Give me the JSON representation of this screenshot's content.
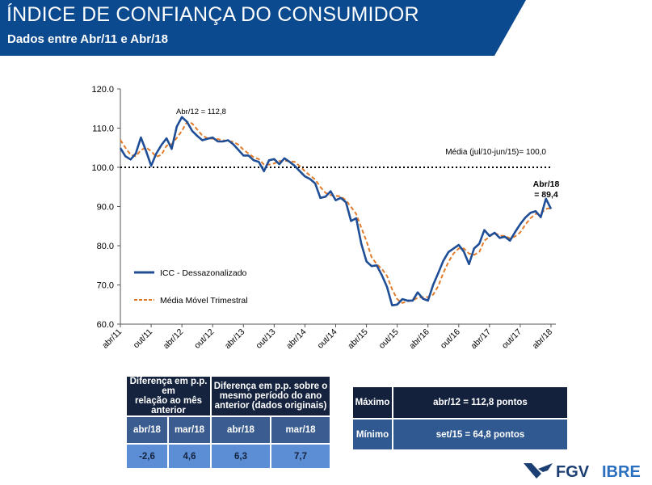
{
  "header": {
    "title": "ÍNDICE DE CONFIANÇA DO CONSUMIDOR",
    "subtitle": "Dados entre Abr/11 e Abr/18",
    "banner_color": "#0b4a8f"
  },
  "chart_data": {
    "type": "line",
    "title": "",
    "xlabel": "",
    "ylabel": "",
    "ylim": [
      60,
      120
    ],
    "yticks": [
      "60.0",
      "70.0",
      "80.0",
      "90.0",
      "100.0",
      "110.0",
      "120.0"
    ],
    "xticks": [
      "abr/11",
      "out/11",
      "abr/12",
      "out/12",
      "abr/13",
      "out/13",
      "abr/14",
      "out/14",
      "abr/15",
      "out/15",
      "abr/16",
      "out/16",
      "abr/17",
      "out/17",
      "abr/18"
    ],
    "x_start": "abr/11",
    "x_end": "abr/18",
    "frequency": "monthly",
    "grid": false,
    "legend_position": "bottom-left",
    "series": [
      {
        "name": "ICC - Dessazonalizado",
        "color": "#1f4e96",
        "style": "solid",
        "values": [
          104.9,
          102.8,
          102.0,
          103.5,
          107.6,
          104.2,
          100.4,
          103.5,
          105.7,
          107.4,
          104.7,
          110.4,
          112.8,
          111.6,
          109.3,
          108.0,
          106.9,
          107.3,
          107.6,
          106.6,
          106.6,
          106.9,
          105.9,
          104.5,
          103.0,
          103.0,
          101.8,
          101.4,
          99.0,
          101.8,
          102.1,
          100.8,
          102.3,
          101.4,
          100.4,
          99.0,
          97.7,
          97.0,
          95.9,
          92.2,
          92.5,
          93.9,
          91.6,
          92.2,
          91.1,
          86.3,
          87.0,
          80.5,
          76.0,
          74.8,
          75.0,
          72.5,
          69.5,
          64.8,
          65.0,
          66.4,
          66.0,
          66.0,
          68.1,
          66.5,
          66.0,
          70.0,
          73.0,
          76.2,
          78.4,
          79.3,
          80.2,
          78.5,
          75.3,
          79.3,
          80.5,
          84.0,
          82.5,
          83.3,
          82.0,
          82.3,
          81.3,
          83.5,
          85.5,
          87.2,
          88.4,
          88.8,
          87.3,
          92.0,
          89.4
        ]
      },
      {
        "name": "Média Móvel Trimestral",
        "color": "#e07b2a",
        "style": "dashed",
        "values": [
          107.0,
          105.0,
          103.2,
          102.8,
          104.4,
          105.1,
          104.1,
          102.7,
          103.2,
          105.5,
          105.9,
          107.5,
          109.3,
          111.6,
          111.2,
          109.6,
          108.1,
          107.4,
          107.3,
          107.2,
          106.9,
          106.7,
          106.5,
          105.8,
          104.5,
          103.5,
          102.6,
          102.1,
          100.7,
          100.7,
          101.0,
          101.6,
          101.7,
          101.5,
          101.4,
          100.3,
          99.0,
          97.9,
          96.9,
          95.0,
          93.5,
          92.9,
          92.7,
          92.6,
          91.6,
          89.9,
          88.1,
          84.6,
          81.2,
          77.1,
          75.3,
          74.1,
          72.3,
          68.9,
          66.4,
          65.4,
          65.8,
          66.1,
          66.7,
          66.9,
          66.9,
          67.5,
          69.7,
          73.1,
          75.9,
          78.0,
          79.3,
          79.3,
          78.0,
          77.7,
          78.4,
          81.3,
          82.3,
          83.3,
          82.6,
          82.5,
          81.9,
          82.4,
          83.4,
          85.4,
          87.0,
          88.1,
          88.2,
          89.4,
          89.6
        ]
      }
    ],
    "reference_line": {
      "value": 100.0,
      "label": "Média (jul/10-jun/15)= 100,0",
      "style": "dotted"
    },
    "annotations": [
      {
        "text": "Abr/12 = 112,8"
      },
      {
        "line1": "Abr/18",
        "line2": "= 89,4"
      }
    ]
  },
  "table_left": {
    "group1": "Diferença em p.p. em relação ao mês anterior",
    "group1_lines": [
      "Diferença em p.p. em",
      "relação ao mês",
      "anterior"
    ],
    "group2_lines": [
      "Diferença em p.p. sobre o",
      "mesmo período do ano",
      "anterior (dados originais)"
    ],
    "columns": [
      "abr/18",
      "mar/18",
      "abr/18",
      "mar/18"
    ],
    "values": [
      "-2,6",
      "4,6",
      "6,3",
      "7,7"
    ]
  },
  "table_right": {
    "rows": [
      {
        "label": "Máximo",
        "value": "abr/12 = 112,8 pontos"
      },
      {
        "label": "Mínimo",
        "value": "set/15 = 64,8 pontos"
      }
    ]
  },
  "logo": {
    "text1": "FGV",
    "text2": "IBRE"
  }
}
